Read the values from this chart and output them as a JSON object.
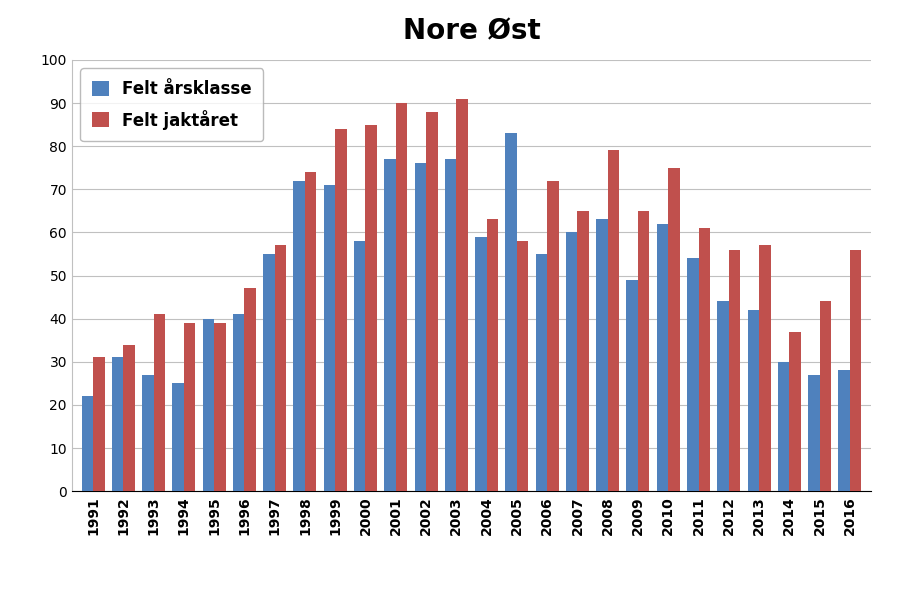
{
  "title": "Nore Øst",
  "years": [
    1991,
    1992,
    1993,
    1994,
    1995,
    1996,
    1997,
    1998,
    1999,
    2000,
    2001,
    2002,
    2003,
    2004,
    2005,
    2006,
    2007,
    2008,
    2009,
    2010,
    2011,
    2012,
    2013,
    2014,
    2015,
    2016
  ],
  "felt_aarsklasse": [
    22,
    31,
    27,
    25,
    40,
    41,
    55,
    72,
    71,
    58,
    77,
    76,
    77,
    59,
    83,
    55,
    60,
    63,
    49,
    62,
    54,
    44,
    42,
    30,
    27,
    28
  ],
  "felt_jaktaret": [
    31,
    34,
    41,
    39,
    39,
    47,
    57,
    74,
    84,
    85,
    90,
    88,
    91,
    63,
    58,
    72,
    65,
    79,
    65,
    75,
    61,
    56,
    57,
    37,
    44,
    56
  ],
  "color_aarsklasse": "#4F81BD",
  "color_jaktaret": "#C0504D",
  "legend_aarsklasse": "Felt årsklasse",
  "legend_jaktaret": "Felt jaktåret",
  "ylim": [
    0,
    100
  ],
  "yticks": [
    0,
    10,
    20,
    30,
    40,
    50,
    60,
    70,
    80,
    90,
    100
  ],
  "background_color": "#FFFFFF",
  "grid_color": "#C0C0C0",
  "title_fontsize": 20,
  "tick_fontsize": 10,
  "legend_fontsize": 12
}
